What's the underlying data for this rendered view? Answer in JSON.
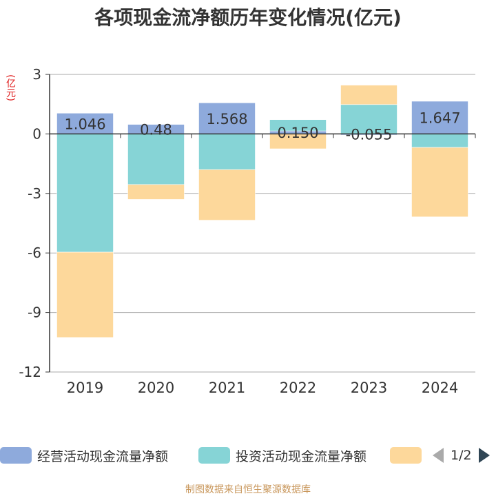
{
  "chart_data": {
    "type": "bar",
    "stacked": true,
    "title": "各项现金流净额历年变化情况(亿元)",
    "ylabel": "(亿元)",
    "categories": [
      "2019",
      "2020",
      "2021",
      "2022",
      "2023",
      "2024"
    ],
    "ylim": [
      -12,
      3
    ],
    "yticks": [
      3,
      0,
      -3,
      -6,
      -9,
      -12
    ],
    "series": [
      {
        "name": "经营活动现金流量净额",
        "color": "#8eaadc",
        "values": [
          1.046,
          0.48,
          1.568,
          0.15,
          -0.055,
          1.647
        ]
      },
      {
        "name": "投资活动现金流量净额",
        "color": "#86d4d6",
        "values": [
          -5.96,
          -2.55,
          -1.8,
          0.57,
          1.48,
          -0.68
        ]
      },
      {
        "name": "",
        "color": "#fdd89b",
        "values": [
          -4.3,
          -0.75,
          -2.55,
          -0.75,
          0.98,
          -3.5
        ]
      }
    ],
    "data_labels": [
      "1.046",
      "0.48",
      "1.568",
      "0.150",
      "-0.055",
      "1.647"
    ],
    "legend_position": "bottom",
    "grid": true
  },
  "legend": {
    "items": [
      "经营活动现金流量净额",
      "投资活动现金流量净额",
      ""
    ],
    "page": "1/2"
  },
  "source_note": "制图数据来自恒生聚源数据库"
}
